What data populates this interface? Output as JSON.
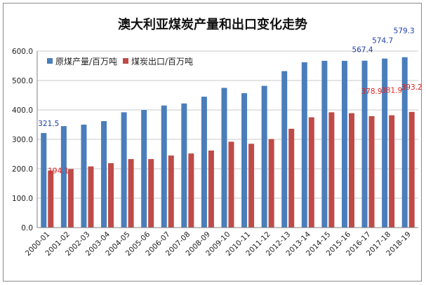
{
  "chart_data": {
    "type": "bar",
    "title": "澳大利亚煤炭产量和出口变化走势",
    "xlabel": "",
    "ylabel": "",
    "ylim": [
      0,
      600
    ],
    "yticks": [
      "0.0",
      "100.0",
      "200.0",
      "300.0",
      "400.0",
      "500.0",
      "600.0"
    ],
    "grid": true,
    "legend_position": "top-left",
    "categories": [
      "2000-01",
      "2001-02",
      "2002-03",
      "2003-04",
      "2004-05",
      "2005-06",
      "2006-07",
      "2007-08",
      "2008-09",
      "2009-10",
      "2010-11",
      "2011-12",
      "2012-13",
      "2013-14",
      "2014-15",
      "2015-16",
      "2016-17",
      "2017-18",
      "2018-19"
    ],
    "series": [
      {
        "name": "原煤产量/百万吨",
        "color": "#4a7ebb",
        "values": [
          321.5,
          345,
          350,
          362,
          392,
          400,
          415,
          422,
          445,
          475,
          457,
          482,
          532,
          562,
          567,
          567,
          567.4,
          574.7,
          579.3
        ]
      },
      {
        "name": "煤炭出口/百万吨",
        "color": "#be4b48",
        "values": [
          194.1,
          199,
          208,
          219,
          233,
          233,
          245,
          252,
          262,
          292,
          285,
          301,
          336,
          375,
          392,
          389,
          378.9,
          381.9,
          393.2
        ]
      }
    ],
    "data_labels": [
      {
        "series": 0,
        "index": 0,
        "text": "321.5"
      },
      {
        "series": 1,
        "index": 0,
        "text": "194.1"
      },
      {
        "series": 0,
        "index": 16,
        "text": "567.4"
      },
      {
        "series": 1,
        "index": 16,
        "text": "378.9"
      },
      {
        "series": 0,
        "index": 17,
        "text": "574.7"
      },
      {
        "series": 1,
        "index": 17,
        "text": "381.9"
      },
      {
        "series": 0,
        "index": 18,
        "text": "579.3"
      },
      {
        "series": 1,
        "index": 18,
        "text": "393.2"
      }
    ]
  }
}
